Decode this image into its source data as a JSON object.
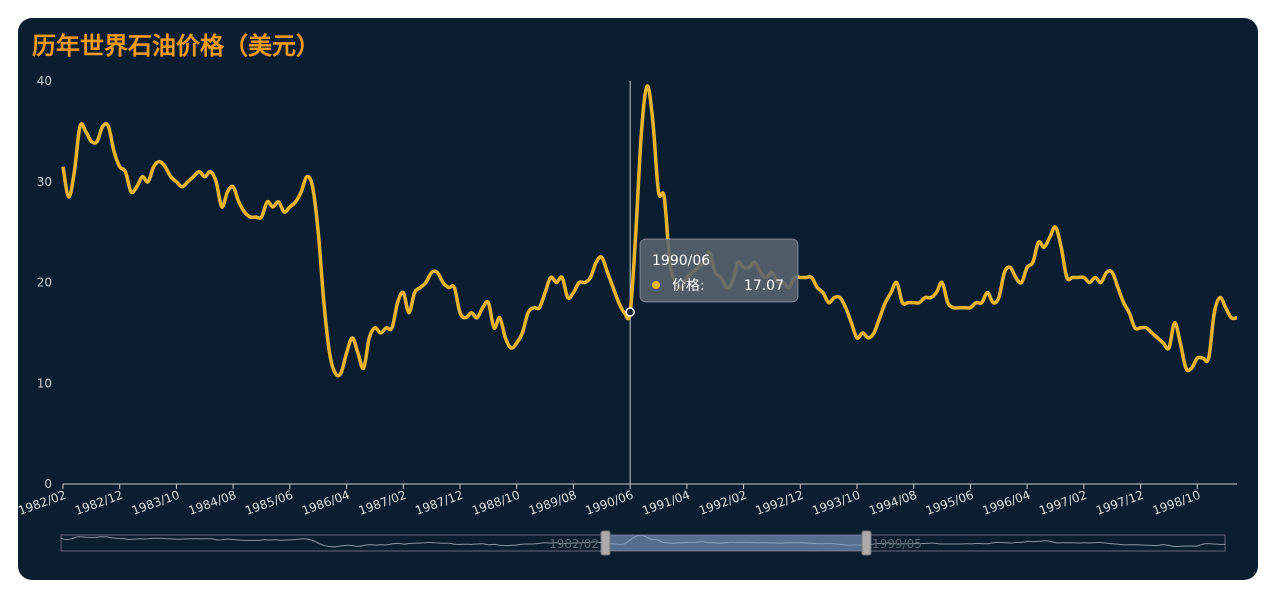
{
  "chart_data": {
    "type": "line",
    "title": "历年世界石油价格（美元）",
    "categories": [
      "1982/02",
      null,
      null,
      null,
      null,
      null,
      null,
      null,
      null,
      null,
      "1982/12",
      null,
      null,
      null,
      null,
      null,
      null,
      null,
      null,
      null,
      "1983/10",
      null,
      null,
      null,
      null,
      null,
      null,
      null,
      null,
      null,
      "1984/08",
      null,
      null,
      null,
      null,
      null,
      null,
      null,
      null,
      null,
      "1985/06",
      null,
      null,
      null,
      null,
      null,
      null,
      null,
      null,
      null,
      "1986/04",
      null,
      null,
      null,
      null,
      null,
      null,
      null,
      null,
      null,
      "1987/02",
      null,
      null,
      null,
      null,
      null,
      null,
      null,
      null,
      null,
      "1987/12",
      null,
      null,
      null,
      null,
      null,
      null,
      null,
      null,
      null,
      "1988/10",
      null,
      null,
      null,
      null,
      null,
      null,
      null,
      null,
      null,
      "1989/08",
      null,
      null,
      null,
      null,
      null,
      null,
      null,
      null,
      null,
      "1990/06",
      null,
      null,
      null,
      null,
      null,
      null,
      null,
      null,
      null,
      "1991/04",
      null,
      null,
      null,
      null,
      null,
      null,
      null,
      null,
      null,
      "1992/02",
      null,
      null,
      null,
      null,
      null,
      null,
      null,
      null,
      null,
      "1992/12",
      null,
      null,
      null,
      null,
      null,
      null,
      null,
      null,
      null,
      "1993/10",
      null,
      null,
      null,
      null,
      null,
      null,
      null,
      null,
      null,
      "1994/08",
      null,
      null,
      null,
      null,
      null,
      null,
      null,
      null,
      null,
      "1995/06",
      null,
      null,
      null,
      null,
      null,
      null,
      null,
      null,
      null,
      "1996/04",
      null,
      null,
      null,
      null,
      null,
      null,
      null,
      null,
      null,
      "1997/02",
      null,
      null,
      null,
      null,
      null,
      null,
      null,
      null,
      null,
      "1997/12",
      null,
      null,
      null,
      null,
      null,
      null,
      null,
      null,
      null,
      "1998/10",
      null,
      null,
      null,
      null,
      null,
      null,
      "1999/05"
    ],
    "series": [
      {
        "name": "价格:",
        "color": "#e8b52a",
        "values": [
          31.5,
          28.5,
          31,
          35.5,
          35,
          34,
          34,
          35.5,
          35.5,
          33,
          31.5,
          31,
          29,
          29.5,
          30.5,
          30,
          31.5,
          32,
          31.5,
          30.5,
          30,
          29.5,
          30,
          30.5,
          31,
          30.5,
          31,
          30,
          27.5,
          29,
          29.5,
          28,
          27,
          26.5,
          26.5,
          26.5,
          28,
          27.5,
          28,
          27,
          27.5,
          28,
          29,
          30.5,
          29.5,
          25,
          18,
          13,
          11,
          11,
          13,
          14.5,
          13,
          11.5,
          14.5,
          15.5,
          15,
          15.5,
          15.5,
          18,
          19,
          17,
          19,
          19.5,
          20,
          21,
          21,
          20,
          19.5,
          19.5,
          17,
          16.5,
          17,
          16.5,
          17.5,
          18,
          15.5,
          16.5,
          14.5,
          13.5,
          14,
          15,
          17,
          17.5,
          17.5,
          19,
          20.5,
          20,
          20.5,
          18.5,
          19,
          20,
          20,
          20.5,
          22,
          22.5,
          21,
          19.5,
          18,
          17,
          17.07,
          25,
          35,
          39.5,
          36,
          29,
          28.5,
          22,
          20,
          19.5,
          20.5,
          21,
          21.5,
          22,
          23,
          21,
          20.5,
          19.5,
          20,
          22,
          21.5,
          21.5,
          22,
          21,
          20.5,
          21,
          20,
          20,
          19.5,
          20.5,
          20.5,
          20.5,
          20.5,
          19.5,
          19,
          18,
          18.5,
          18.5,
          17.5,
          16,
          14.5,
          15,
          14.5,
          15,
          16.5,
          18,
          19,
          20,
          18,
          18,
          18,
          18,
          18.5,
          18.5,
          19,
          20,
          18,
          17.5,
          17.5,
          17.5,
          17.5,
          18,
          18,
          19,
          18,
          18.5,
          21,
          21.5,
          20.5,
          20,
          21.5,
          22,
          24,
          23.5,
          24.5,
          25.5,
          23.5,
          20.5,
          20.5,
          20.5,
          20.5,
          20,
          20.5,
          20,
          21,
          21,
          19.5,
          18,
          17,
          15.5,
          15.5,
          15.5,
          15,
          14.5,
          14,
          13.5,
          16,
          14,
          11.5,
          11.5,
          12.5,
          12.5,
          12.5,
          17,
          18.5,
          17.5,
          16.5,
          16.5
        ]
      }
    ],
    "ylim": [
      0,
      40
    ],
    "yticks": [
      0,
      10,
      20,
      30,
      40
    ],
    "grid": false
  }
}
